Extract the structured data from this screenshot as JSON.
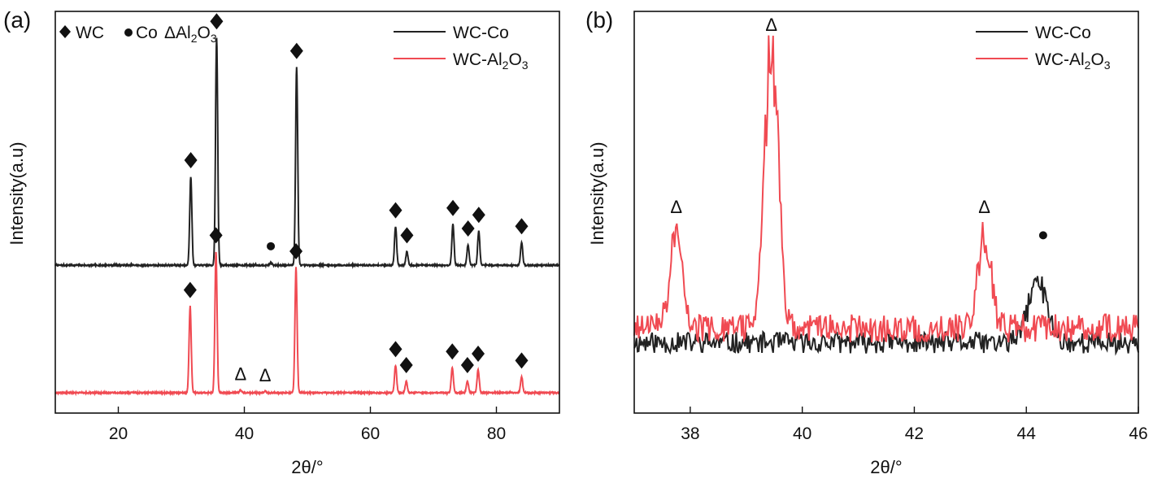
{
  "chart_data": [
    {
      "panel": "(a)",
      "type": "line",
      "xlabel": "2θ/°",
      "ylabel": "Intensity(a.u)",
      "xlim": [
        10,
        90
      ],
      "xticks": [
        20,
        40,
        60,
        80
      ],
      "y_ticks_shown": false,
      "legend": {
        "position": "top-right",
        "entries": [
          {
            "name": "WC-Co",
            "color": "#222222"
          },
          {
            "name": "WC-Al2O3",
            "color": "#f04a52"
          }
        ]
      },
      "phase_legend": [
        {
          "symbol": "diamond",
          "label": "WC"
        },
        {
          "symbol": "circle",
          "label": "Co"
        },
        {
          "symbol": "triangle",
          "label": "ΔAl2O3"
        }
      ],
      "series": [
        {
          "name": "WC-Co",
          "color": "#222222",
          "baseline": 0.56,
          "peaks": [
            {
              "x": 31.5,
              "y": 0.39
            },
            {
              "x": 35.6,
              "y": 1.0
            },
            {
              "x": 44.2,
              "y": 0.012
            },
            {
              "x": 48.3,
              "y": 0.87
            },
            {
              "x": 64.0,
              "y": 0.17
            },
            {
              "x": 65.8,
              "y": 0.06
            },
            {
              "x": 73.1,
              "y": 0.18
            },
            {
              "x": 75.5,
              "y": 0.09
            },
            {
              "x": 77.2,
              "y": 0.15
            },
            {
              "x": 84.0,
              "y": 0.1
            }
          ],
          "markers": [
            {
              "x": 31.5,
              "symbol": "diamond"
            },
            {
              "x": 35.6,
              "symbol": "diamond"
            },
            {
              "x": 44.2,
              "symbol": "circle"
            },
            {
              "x": 48.3,
              "symbol": "diamond"
            },
            {
              "x": 64.0,
              "symbol": "diamond"
            },
            {
              "x": 65.8,
              "symbol": "diamond"
            },
            {
              "x": 73.1,
              "symbol": "diamond"
            },
            {
              "x": 75.5,
              "symbol": "diamond"
            },
            {
              "x": 77.2,
              "symbol": "diamond"
            },
            {
              "x": 84.0,
              "symbol": "diamond"
            }
          ]
        },
        {
          "name": "WC-Al2O3",
          "color": "#f04a52",
          "baseline": 0.0,
          "peaks": [
            {
              "x": 31.4,
              "y": 0.38
            },
            {
              "x": 35.5,
              "y": 0.62
            },
            {
              "x": 39.4,
              "y": 0.012
            },
            {
              "x": 43.3,
              "y": 0.008
            },
            {
              "x": 48.2,
              "y": 0.55
            },
            {
              "x": 64.0,
              "y": 0.12
            },
            {
              "x": 65.7,
              "y": 0.05
            },
            {
              "x": 73.0,
              "y": 0.11
            },
            {
              "x": 75.4,
              "y": 0.05
            },
            {
              "x": 77.1,
              "y": 0.1
            },
            {
              "x": 84.0,
              "y": 0.07
            }
          ],
          "markers": [
            {
              "x": 31.4,
              "symbol": "diamond"
            },
            {
              "x": 35.5,
              "symbol": "diamond"
            },
            {
              "x": 39.4,
              "symbol": "triangle"
            },
            {
              "x": 43.3,
              "symbol": "triangle"
            },
            {
              "x": 48.2,
              "symbol": "diamond"
            },
            {
              "x": 64.0,
              "symbol": "diamond"
            },
            {
              "x": 65.7,
              "symbol": "diamond"
            },
            {
              "x": 73.0,
              "symbol": "diamond"
            },
            {
              "x": 75.4,
              "symbol": "diamond"
            },
            {
              "x": 77.1,
              "symbol": "diamond"
            },
            {
              "x": 84.0,
              "symbol": "diamond"
            }
          ]
        }
      ]
    },
    {
      "panel": "(b)",
      "type": "line",
      "xlabel": "2θ/°",
      "ylabel": "Intensity(a.u)",
      "xlim": [
        37,
        46
      ],
      "xticks": [
        38,
        40,
        42,
        44,
        46
      ],
      "y_ticks_shown": false,
      "legend": {
        "position": "top-right",
        "entries": [
          {
            "name": "WC-Co",
            "color": "#222222"
          },
          {
            "name": "WC-Al2O3",
            "color": "#f04a52"
          }
        ]
      },
      "series": [
        {
          "name": "WC-Co",
          "color": "#222222",
          "baseline": 0.14,
          "peaks": [
            {
              "x": 44.2,
              "y": 0.17
            }
          ],
          "markers": [
            {
              "x": 44.3,
              "y": 0.44,
              "symbol": "circle"
            }
          ]
        },
        {
          "name": "WC-Al2O3",
          "color": "#f04a52",
          "baseline": 0.18,
          "peaks": [
            {
              "x": 37.75,
              "y": 0.25
            },
            {
              "x": 39.45,
              "y": 0.8
            },
            {
              "x": 43.25,
              "y": 0.24
            }
          ],
          "markers": [
            {
              "x": 37.75,
              "y": 0.52,
              "symbol": "triangle"
            },
            {
              "x": 39.45,
              "y": 1.03,
              "symbol": "triangle"
            },
            {
              "x": 43.25,
              "y": 0.52,
              "symbol": "triangle"
            }
          ]
        }
      ]
    }
  ]
}
